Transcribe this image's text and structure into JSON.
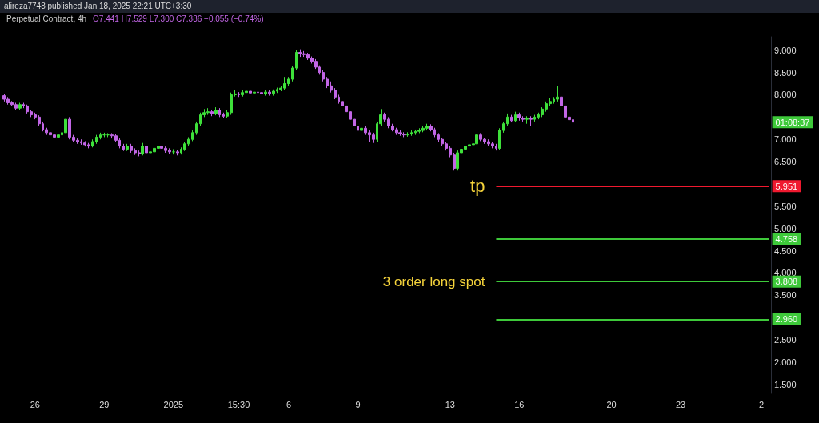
{
  "chart_data": {
    "type": "candlestick",
    "subtitle": "alireza7748 published Jan 18, 2025 22:21 UTC+3:30",
    "title": "Perpetual Contract, 4h",
    "annotations": [
      "O7.441 H7.529 L7.300 C7.386 −0.055 (−0.74%)",
      "01:08:37",
      "tp",
      "3 order long spot"
    ],
    "categories": [
      null,
      null,
      null,
      null,
      null,
      null,
      null,
      null,
      "26",
      null,
      null,
      null,
      null,
      null,
      null,
      null,
      null,
      null,
      null,
      null,
      null,
      null,
      null,
      null,
      null,
      null,
      "29",
      null,
      null,
      null,
      null,
      null,
      null,
      null,
      null,
      null,
      null,
      null,
      null,
      null,
      null,
      null,
      null,
      null,
      "2025",
      null,
      null,
      null,
      null,
      null,
      null,
      null,
      null,
      null,
      null,
      null,
      null,
      null,
      null,
      null,
      null,
      "15:30",
      null,
      null,
      null,
      null,
      null,
      null,
      null,
      null,
      null,
      null,
      null,
      null,
      "6",
      null,
      null,
      null,
      null,
      null,
      null,
      null,
      null,
      null,
      null,
      null,
      null,
      null,
      null,
      null,
      null,
      null,
      "9",
      null,
      null,
      null,
      null,
      null,
      null,
      null,
      null,
      null,
      null,
      null,
      null,
      null,
      null,
      null,
      null,
      null,
      null,
      null,
      null,
      null,
      null,
      null,
      "13",
      null,
      null,
      null,
      null,
      null,
      null,
      null,
      null,
      null,
      null,
      null,
      null,
      null,
      null,
      null,
      null,
      null,
      "16",
      null,
      null,
      null,
      null,
      null,
      null,
      null,
      null,
      null,
      null,
      null,
      null,
      null,
      null,
      null,
      null,
      null,
      null,
      null,
      null,
      null,
      null,
      null,
      "20",
      null,
      null,
      null,
      null,
      null,
      null,
      null,
      null,
      null,
      null,
      null,
      null,
      null,
      null,
      null,
      null,
      null,
      "23",
      null,
      null,
      null,
      null,
      null,
      null,
      null,
      null,
      null,
      null,
      null,
      null,
      null,
      null,
      null,
      null,
      null,
      null,
      null,
      null,
      "2",
      null,
      null
    ],
    "colors": [
      "#c266e6",
      "#c266e6",
      "#c266e6",
      "#c266e6",
      "#3ee03a",
      "#c266e6",
      "#c266e6",
      "#c266e6",
      "#c266e6",
      "#c266e6",
      "#c266e6",
      "#c266e6",
      "#c266e6",
      "#c266e6",
      "#3ee03a",
      "#3ee03a",
      "#3ee03a",
      "#c266e6",
      "#c266e6",
      "#c266e6",
      "#c266e6",
      "#c266e6",
      "#c266e6",
      "#3ee03a",
      "#3ee03a",
      "#3ee03a",
      "#3ee03a",
      "#3ee03a",
      "#c266e6",
      "#c266e6",
      "#c266e6",
      "#c266e6",
      "#3ee03a",
      "#c266e6",
      "#c266e6",
      "#c266e6",
      "#3ee03a",
      "#c266e6",
      "#3ee03a",
      "#3ee03a",
      "#3ee03a",
      "#c266e6",
      "#c266e6",
      "#c266e6",
      "#3ee03a",
      "#c266e6",
      "#3ee03a",
      "#3ee03a",
      "#3ee03a",
      "#3ee03a",
      "#3ee03a",
      "#3ee03a",
      "#3ee03a",
      "#3ee03a",
      "#c266e6",
      "#3ee03a",
      "#c266e6",
      "#c266e6",
      "#3ee03a",
      "#3ee03a",
      "#3ee03a",
      "#c266e6",
      "#3ee03a",
      "#3ee03a",
      "#c266e6",
      "#3ee03a",
      "#c266e6",
      "#c266e6",
      "#3ee03a",
      "#c266e6",
      "#3ee03a",
      "#3ee03a",
      "#3ee03a",
      "#3ee03a",
      "#3ee03a",
      "#3ee03a",
      "#3ee03a",
      "#c266e6",
      "#c266e6",
      "#c266e6",
      "#c266e6",
      "#c266e6",
      "#c266e6",
      "#c266e6",
      "#c266e6",
      "#c266e6",
      "#c266e6",
      "#c266e6",
      "#c266e6",
      "#c266e6",
      "#c266e6",
      "#c266e6",
      "#c266e6",
      "#3ee03a",
      "#c266e6",
      "#c266e6",
      "#c266e6",
      "#3ee03a",
      "#3ee03a",
      "#c266e6",
      "#c266e6",
      "#c266e6",
      "#c266e6",
      "#c266e6",
      "#c266e6",
      "#3ee03a",
      "#3ee03a",
      "#3ee03a",
      "#3ee03a",
      "#3ee03a",
      "#3ee03a",
      "#c266e6",
      "#c266e6",
      "#c266e6",
      "#c266e6",
      "#c266e6",
      "#c266e6",
      "#c266e6",
      "#3ee03a",
      "#3ee03a",
      "#3ee03a",
      "#3ee03a",
      "#3ee03a",
      "#3ee03a",
      "#c266e6",
      "#c266e6",
      "#c266e6",
      "#c266e6",
      "#c266e6",
      "#3ee03a",
      "#3ee03a",
      "#3ee03a",
      "#c266e6",
      "#3ee03a",
      "#c266e6",
      "#c266e6",
      "#3ee03a",
      "#c266e6",
      "#3ee03a",
      "#3ee03a",
      "#3ee03a",
      "#3ee03a",
      "#3ee03a",
      "#3ee03a",
      "#3ee03a",
      "#c266e6",
      "#c266e6",
      "#c266e6",
      "#c266e6",
      null,
      null,
      null,
      null,
      null,
      null,
      null,
      null,
      null,
      null,
      null,
      null,
      null,
      null,
      null,
      null,
      null,
      null,
      null,
      null,
      null,
      null,
      null,
      null,
      null,
      null,
      null,
      null,
      null,
      null,
      null,
      null,
      null,
      null,
      null,
      null,
      null,
      null,
      null,
      null,
      null,
      null,
      null,
      null,
      null,
      null,
      null,
      null,
      null,
      null,
      null
    ],
    "ohlc": [
      [
        7.98,
        8.02,
        7.85,
        7.9
      ],
      [
        7.9,
        7.95,
        7.78,
        7.82
      ],
      [
        7.82,
        7.86,
        7.74,
        7.78
      ],
      [
        7.78,
        7.82,
        7.66,
        7.7
      ],
      [
        7.7,
        7.82,
        7.66,
        7.78
      ],
      [
        7.78,
        7.82,
        7.7,
        7.75
      ],
      [
        7.75,
        7.78,
        7.58,
        7.62
      ],
      [
        7.62,
        7.66,
        7.5,
        7.55
      ],
      [
        7.55,
        7.6,
        7.45,
        7.5
      ],
      [
        7.5,
        7.54,
        7.3,
        7.35
      ],
      [
        7.35,
        7.4,
        7.18,
        7.22
      ],
      [
        7.22,
        7.26,
        7.1,
        7.15
      ],
      [
        7.15,
        7.2,
        7.05,
        7.1
      ],
      [
        7.1,
        7.14,
        7.0,
        7.05
      ],
      [
        7.05,
        7.15,
        7.0,
        7.1
      ],
      [
        7.1,
        7.2,
        7.05,
        7.15
      ],
      [
        7.15,
        7.55,
        7.1,
        7.45
      ],
      [
        7.45,
        7.5,
        7.0,
        7.05
      ],
      [
        7.05,
        7.1,
        6.94,
        6.98
      ],
      [
        6.98,
        7.02,
        6.9,
        6.95
      ],
      [
        6.95,
        7.0,
        6.88,
        6.92
      ],
      [
        6.92,
        6.96,
        6.84,
        6.88
      ],
      [
        6.88,
        6.92,
        6.8,
        6.85
      ],
      [
        6.85,
        7.0,
        6.82,
        6.95
      ],
      [
        6.95,
        7.1,
        6.9,
        7.05
      ],
      [
        7.05,
        7.15,
        7.0,
        7.1
      ],
      [
        7.1,
        7.15,
        7.05,
        7.1
      ],
      [
        7.1,
        7.14,
        7.05,
        7.1
      ],
      [
        7.1,
        7.14,
        7.02,
        7.08
      ],
      [
        7.08,
        7.12,
        6.94,
        6.98
      ],
      [
        6.98,
        7.02,
        6.8,
        6.85
      ],
      [
        6.85,
        6.9,
        6.74,
        6.78
      ],
      [
        6.78,
        6.9,
        6.74,
        6.85
      ],
      [
        6.85,
        6.9,
        6.7,
        6.75
      ],
      [
        6.75,
        6.8,
        6.65,
        6.7
      ],
      [
        6.7,
        6.75,
        6.62,
        6.68
      ],
      [
        6.68,
        6.92,
        6.64,
        6.85
      ],
      [
        6.85,
        6.9,
        6.65,
        6.7
      ],
      [
        6.7,
        6.78,
        6.66,
        6.72
      ],
      [
        6.72,
        6.85,
        6.68,
        6.8
      ],
      [
        6.8,
        6.9,
        6.76,
        6.85
      ],
      [
        6.85,
        6.9,
        6.75,
        6.8
      ],
      [
        6.8,
        6.84,
        6.7,
        6.75
      ],
      [
        6.75,
        6.8,
        6.68,
        6.72
      ],
      [
        6.72,
        6.78,
        6.66,
        6.72
      ],
      [
        6.72,
        6.76,
        6.64,
        6.7
      ],
      [
        6.7,
        6.82,
        6.66,
        6.78
      ],
      [
        6.78,
        6.95,
        6.74,
        6.9
      ],
      [
        6.9,
        7.05,
        6.86,
        7.0
      ],
      [
        7.0,
        7.2,
        6.96,
        7.15
      ],
      [
        7.15,
        7.4,
        7.1,
        7.35
      ],
      [
        7.35,
        7.6,
        7.3,
        7.55
      ],
      [
        7.55,
        7.68,
        7.5,
        7.6
      ],
      [
        7.6,
        7.7,
        7.55,
        7.62
      ],
      [
        7.62,
        7.66,
        7.52,
        7.58
      ],
      [
        7.58,
        7.72,
        7.54,
        7.65
      ],
      [
        7.65,
        7.7,
        7.5,
        7.55
      ],
      [
        7.55,
        7.6,
        7.48,
        7.52
      ],
      [
        7.52,
        7.65,
        7.48,
        7.6
      ],
      [
        7.6,
        8.05,
        7.55,
        8.0
      ],
      [
        8.0,
        8.1,
        7.96,
        8.02
      ],
      [
        8.02,
        8.06,
        7.95,
        8.0
      ],
      [
        8.0,
        8.1,
        7.96,
        8.05
      ],
      [
        8.05,
        8.12,
        8.0,
        8.08
      ],
      [
        8.08,
        8.12,
        8.0,
        8.04
      ],
      [
        8.04,
        8.1,
        8.0,
        8.06
      ],
      [
        8.06,
        8.1,
        8.0,
        8.05
      ],
      [
        8.05,
        8.08,
        7.96,
        8.02
      ],
      [
        8.02,
        8.1,
        7.98,
        8.06
      ],
      [
        8.06,
        8.1,
        7.98,
        8.03
      ],
      [
        8.03,
        8.12,
        7.98,
        8.08
      ],
      [
        8.08,
        8.16,
        8.04,
        8.12
      ],
      [
        8.12,
        8.2,
        8.08,
        8.15
      ],
      [
        8.15,
        8.4,
        8.1,
        8.25
      ],
      [
        8.25,
        8.4,
        8.2,
        8.35
      ],
      [
        8.35,
        8.65,
        8.3,
        8.6
      ],
      [
        8.6,
        9.0,
        8.55,
        8.95
      ],
      [
        8.95,
        9.02,
        8.85,
        8.92
      ],
      [
        8.92,
        8.98,
        8.85,
        8.9
      ],
      [
        8.9,
        8.94,
        8.78,
        8.82
      ],
      [
        8.82,
        8.86,
        8.7,
        8.75
      ],
      [
        8.75,
        8.8,
        8.58,
        8.62
      ],
      [
        8.62,
        8.66,
        8.45,
        8.5
      ],
      [
        8.5,
        8.55,
        8.3,
        8.35
      ],
      [
        8.35,
        8.4,
        8.15,
        8.2
      ],
      [
        8.2,
        8.3,
        8.05,
        8.1
      ],
      [
        8.1,
        8.15,
        7.9,
        7.95
      ],
      [
        7.95,
        8.0,
        7.8,
        7.85
      ],
      [
        7.85,
        7.9,
        7.7,
        7.75
      ],
      [
        7.75,
        7.8,
        7.58,
        7.62
      ],
      [
        7.62,
        7.66,
        7.4,
        7.45
      ],
      [
        7.45,
        7.5,
        7.15,
        7.3
      ],
      [
        7.3,
        7.35,
        7.15,
        7.2
      ],
      [
        7.2,
        7.3,
        7.15,
        7.25
      ],
      [
        7.25,
        7.3,
        7.1,
        7.15
      ],
      [
        7.15,
        7.2,
        6.95,
        7.1
      ],
      [
        7.1,
        7.15,
        6.92,
        7.0
      ],
      [
        7.0,
        7.4,
        6.95,
        7.35
      ],
      [
        7.35,
        7.68,
        7.3,
        7.55
      ],
      [
        7.55,
        7.6,
        7.4,
        7.45
      ],
      [
        7.45,
        7.5,
        7.25,
        7.3
      ],
      [
        7.3,
        7.35,
        7.18,
        7.22
      ],
      [
        7.22,
        7.26,
        7.1,
        7.15
      ],
      [
        7.15,
        7.2,
        7.08,
        7.12
      ],
      [
        7.12,
        7.16,
        7.05,
        7.1
      ],
      [
        7.1,
        7.16,
        7.06,
        7.12
      ],
      [
        7.12,
        7.2,
        7.08,
        7.15
      ],
      [
        7.15,
        7.22,
        7.1,
        7.18
      ],
      [
        7.18,
        7.25,
        7.14,
        7.2
      ],
      [
        7.2,
        7.3,
        7.16,
        7.25
      ],
      [
        7.25,
        7.35,
        7.2,
        7.3
      ],
      [
        7.3,
        7.34,
        7.18,
        7.22
      ],
      [
        7.22,
        7.26,
        7.05,
        7.1
      ],
      [
        7.1,
        7.14,
        6.95,
        7.0
      ],
      [
        7.0,
        7.04,
        6.85,
        6.9
      ],
      [
        6.9,
        6.95,
        6.75,
        6.8
      ],
      [
        6.8,
        6.85,
        6.6,
        6.65
      ],
      [
        6.65,
        6.7,
        6.3,
        6.35
      ],
      [
        6.35,
        6.75,
        6.3,
        6.7
      ],
      [
        6.7,
        6.82,
        6.65,
        6.78
      ],
      [
        6.78,
        6.9,
        6.74,
        6.85
      ],
      [
        6.85,
        6.92,
        6.8,
        6.88
      ],
      [
        6.88,
        6.95,
        6.84,
        6.9
      ],
      [
        6.9,
        7.15,
        6.86,
        7.1
      ],
      [
        7.1,
        7.14,
        6.96,
        7.0
      ],
      [
        7.0,
        7.04,
        6.9,
        6.95
      ],
      [
        6.95,
        7.0,
        6.86,
        6.9
      ],
      [
        6.9,
        6.95,
        6.8,
        6.85
      ],
      [
        6.85,
        6.9,
        6.75,
        6.8
      ],
      [
        6.8,
        7.25,
        6.76,
        7.2
      ],
      [
        7.2,
        7.4,
        7.15,
        7.35
      ],
      [
        7.35,
        7.58,
        7.3,
        7.5
      ],
      [
        7.5,
        7.55,
        7.38,
        7.42
      ],
      [
        7.42,
        7.62,
        7.38,
        7.55
      ],
      [
        7.55,
        7.6,
        7.42,
        7.48
      ],
      [
        7.48,
        7.52,
        7.4,
        7.45
      ],
      [
        7.45,
        7.52,
        7.35,
        7.48
      ],
      [
        7.48,
        7.52,
        7.3,
        7.45
      ],
      [
        7.45,
        7.55,
        7.4,
        7.5
      ],
      [
        7.5,
        7.6,
        7.45,
        7.55
      ],
      [
        7.55,
        7.72,
        7.5,
        7.68
      ],
      [
        7.68,
        7.85,
        7.62,
        7.8
      ],
      [
        7.8,
        7.92,
        7.75,
        7.85
      ],
      [
        7.85,
        7.95,
        7.8,
        7.9
      ],
      [
        7.9,
        8.2,
        7.85,
        7.95
      ],
      [
        7.95,
        8.0,
        7.7,
        7.75
      ],
      [
        7.75,
        7.8,
        7.45,
        7.5
      ],
      [
        7.5,
        7.55,
        7.4,
        7.441
      ],
      [
        7.441,
        7.529,
        7.3,
        7.386
      ],
      null,
      null,
      null,
      null,
      null,
      null,
      null,
      null,
      null,
      null,
      null,
      null,
      null,
      null,
      null,
      null,
      null,
      null,
      null,
      null,
      null,
      null,
      null,
      null,
      null,
      null,
      null,
      null,
      null,
      null,
      null,
      null,
      null,
      null,
      null,
      null,
      null,
      null,
      null,
      null,
      null,
      null,
      null,
      null,
      null,
      null,
      null,
      null,
      null,
      null,
      null
    ],
    "ylim": [
      1.3,
      9.3
    ],
    "yticks": [
      {
        "value": 1.5,
        "label": "1.500"
      },
      {
        "value": 2,
        "label": "2.000"
      },
      {
        "value": 2.5,
        "label": "2.500"
      },
      {
        "value": 3.5,
        "label": "3.500"
      },
      {
        "value": 4,
        "label": "4.000"
      },
      {
        "value": 4.5,
        "label": "4.500"
      },
      {
        "value": 5,
        "label": "5.000"
      },
      {
        "value": 5.5,
        "label": "5.500"
      },
      {
        "value": 6.5,
        "label": "6.500"
      },
      {
        "value": 7,
        "label": "7.000"
      },
      {
        "value": 8,
        "label": "8.000"
      },
      {
        "value": 8.5,
        "label": "8.500"
      },
      {
        "value": 9,
        "label": "9.000"
      }
    ],
    "ref_lines": [
      {
        "axis": "y",
        "value": 7.386,
        "color": "#bdbdbd",
        "line_style": "dotted"
      },
      {
        "axis": "y",
        "value": 5.951,
        "label": "5.951",
        "color": "#f0192f",
        "line_style": "solid"
      },
      {
        "axis": "y",
        "value": 4.758,
        "label": "4.758",
        "color": "#3ec93a",
        "line_style": "solid"
      },
      {
        "axis": "y",
        "value": 3.808,
        "label": "3.808",
        "color": "#3ec93a",
        "line_style": "solid"
      },
      {
        "axis": "y",
        "value": 2.96,
        "label": "2.960",
        "color": "#3ec93a",
        "line_style": "solid"
      }
    ]
  }
}
